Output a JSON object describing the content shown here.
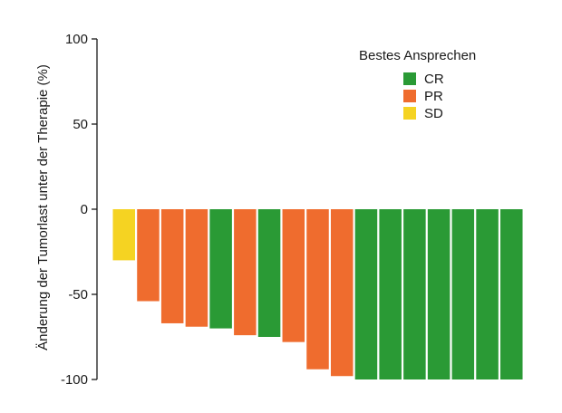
{
  "chart_data": {
    "type": "bar",
    "ylabel": "Änderung der Tumorlast unter der Therapie (%)",
    "xlabel": "",
    "ylim": [
      -100,
      100
    ],
    "yticks": [
      100,
      50,
      0,
      -50,
      -100
    ],
    "ytick_labels": [
      "100",
      "50",
      "0",
      "-50",
      "-100"
    ],
    "grid": false,
    "legend": {
      "title": "Bestes Ansprechen",
      "placement": "top-right",
      "entries": [
        {
          "key": "CR",
          "label": "CR",
          "color": "#2a9a35"
        },
        {
          "key": "PR",
          "label": "PR",
          "color": "#ef6c2e"
        },
        {
          "key": "SD",
          "label": "SD",
          "color": "#f5d322"
        }
      ]
    },
    "values": [
      -30,
      -54,
      -67,
      -69,
      -70,
      -74,
      -75,
      -78,
      -94,
      -98,
      -100,
      -100,
      -100,
      -100,
      -100,
      -100,
      -100
    ],
    "response": [
      "SD",
      "PR",
      "PR",
      "PR",
      "CR",
      "PR",
      "CR",
      "PR",
      "PR",
      "PR",
      "CR",
      "CR",
      "CR",
      "CR",
      "CR",
      "CR",
      "CR"
    ]
  }
}
